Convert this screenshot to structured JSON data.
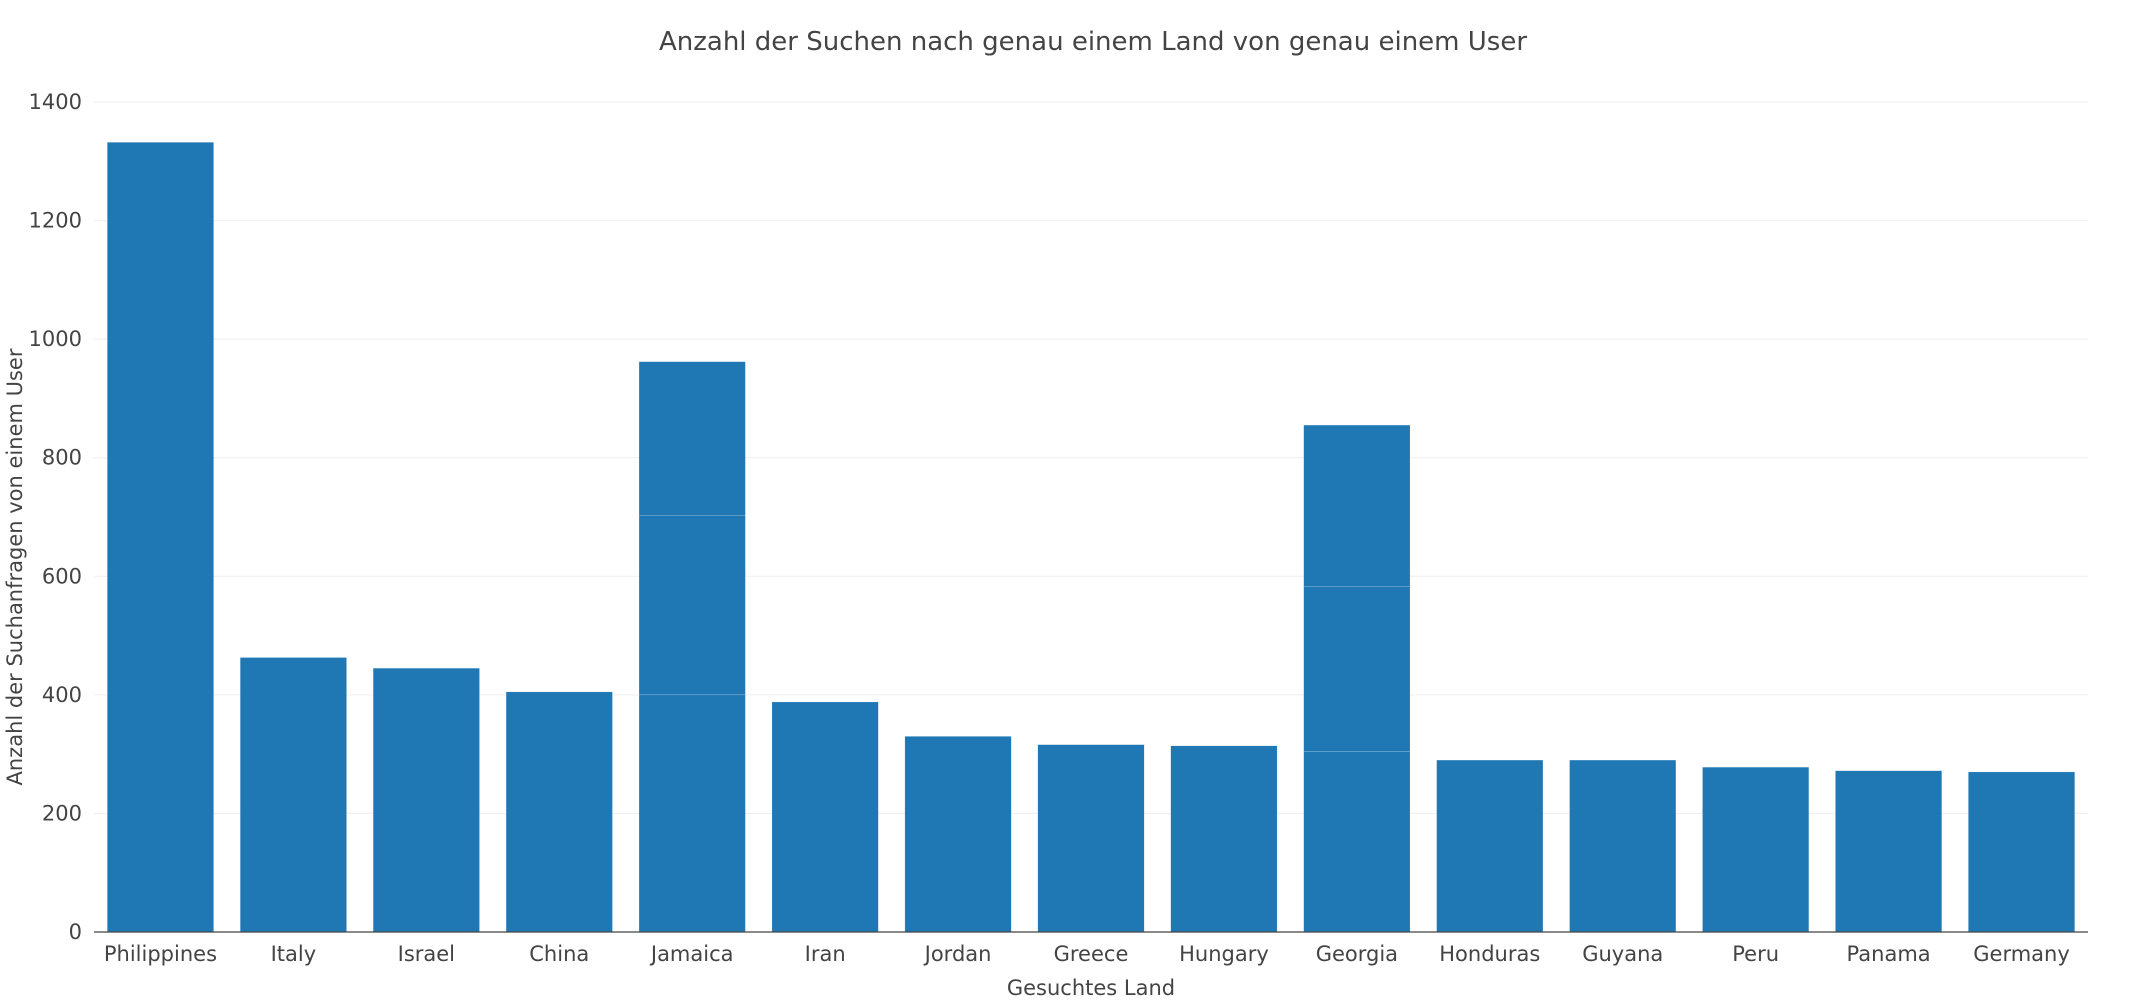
{
  "chart_data": {
    "type": "bar",
    "title": "Anzahl der Suchen nach genau einem Land von genau einem User",
    "xlabel": "Gesuchtes Land",
    "ylabel": "Anzahl der Suchanfragen von einem User",
    "categories": [
      "Philippines",
      "Italy",
      "Israel",
      "China",
      "Jamaica",
      "Iran",
      "Jordan",
      "Greece",
      "Hungary",
      "Georgia",
      "Honduras",
      "Guyana",
      "Peru",
      "Panama",
      "Germany"
    ],
    "stacks": [
      [
        1332
      ],
      [
        463
      ],
      [
        445
      ],
      [
        405
      ],
      [
        400,
        302,
        260
      ],
      [
        388
      ],
      [
        330
      ],
      [
        316
      ],
      [
        314
      ],
      [
        304,
        279,
        272
      ],
      [
        290
      ],
      [
        290
      ],
      [
        278
      ],
      [
        272
      ],
      [
        270
      ]
    ],
    "ylim": [
      0,
      1400
    ],
    "yticks": [
      0,
      200,
      400,
      600,
      800,
      1000,
      1200,
      1400
    ],
    "grid": true,
    "color": "#1f77b4",
    "gridColor": "#eeeeee",
    "axisColor": "#444444"
  }
}
